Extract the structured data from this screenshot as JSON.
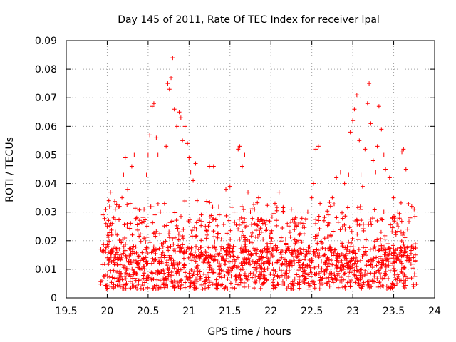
{
  "chart_data": {
    "type": "scatter",
    "title": "Day 145 of 2011, Rate Of TEC Index for receiver lpal",
    "xlabel": "GPS time / hours",
    "ylabel": "ROTI / TECUs",
    "xlim": [
      19.5,
      24
    ],
    "ylim": [
      0,
      0.09
    ],
    "grid": true,
    "legend": "none",
    "marker": "+",
    "x_ticks": [
      "19.5",
      "20",
      "20.5",
      "21",
      "21.5",
      "22",
      "22.5",
      "23",
      "23.5",
      "24"
    ],
    "y_ticks": [
      "0",
      "0.01",
      "0.02",
      "0.03",
      "0.04",
      "0.05",
      "0.06",
      "0.07",
      "0.08",
      "0.09"
    ],
    "series": [
      {
        "color": "#ff0000",
        "x_range": [
          19.92,
          23.78
        ],
        "points": [
          [
            19.95,
            0.029
          ],
          [
            19.98,
            0.017
          ],
          [
            20.0,
            0.025
          ],
          [
            20.02,
            0.034
          ],
          [
            20.04,
            0.037
          ],
          [
            20.06,
            0.026
          ],
          [
            20.08,
            0.028
          ],
          [
            20.1,
            0.031
          ],
          [
            20.12,
            0.022
          ],
          [
            20.15,
            0.032
          ],
          [
            20.18,
            0.035
          ],
          [
            20.2,
            0.043
          ],
          [
            20.22,
            0.049
          ],
          [
            20.25,
            0.038
          ],
          [
            20.28,
            0.033
          ],
          [
            20.3,
            0.046
          ],
          [
            20.33,
            0.05
          ],
          [
            20.36,
            0.028
          ],
          [
            20.4,
            0.026
          ],
          [
            20.45,
            0.031
          ],
          [
            20.48,
            0.043
          ],
          [
            20.5,
            0.05
          ],
          [
            20.52,
            0.057
          ],
          [
            20.55,
            0.067
          ],
          [
            20.57,
            0.068
          ],
          [
            20.6,
            0.056
          ],
          [
            20.62,
            0.05
          ],
          [
            20.65,
            0.03
          ],
          [
            20.7,
            0.033
          ],
          [
            20.72,
            0.053
          ],
          [
            20.74,
            0.075
          ],
          [
            20.76,
            0.073
          ],
          [
            20.78,
            0.077
          ],
          [
            20.8,
            0.084
          ],
          [
            20.82,
            0.066
          ],
          [
            20.85,
            0.06
          ],
          [
            20.88,
            0.065
          ],
          [
            20.9,
            0.063
          ],
          [
            20.92,
            0.055
          ],
          [
            20.95,
            0.06
          ],
          [
            20.98,
            0.054
          ],
          [
            21.0,
            0.049
          ],
          [
            21.02,
            0.044
          ],
          [
            21.05,
            0.041
          ],
          [
            21.08,
            0.047
          ],
          [
            21.1,
            0.034
          ],
          [
            21.15,
            0.029
          ],
          [
            21.2,
            0.025
          ],
          [
            21.25,
            0.046
          ],
          [
            21.3,
            0.046
          ],
          [
            21.35,
            0.021
          ],
          [
            21.4,
            0.018
          ],
          [
            21.45,
            0.038
          ],
          [
            21.5,
            0.039
          ],
          [
            21.55,
            0.03
          ],
          [
            21.6,
            0.052
          ],
          [
            21.62,
            0.053
          ],
          [
            21.65,
            0.046
          ],
          [
            21.68,
            0.05
          ],
          [
            21.72,
            0.037
          ],
          [
            21.75,
            0.03
          ],
          [
            21.8,
            0.031
          ],
          [
            21.85,
            0.035
          ],
          [
            21.9,
            0.027
          ],
          [
            21.95,
            0.024
          ],
          [
            22.0,
            0.021
          ],
          [
            22.05,
            0.033
          ],
          [
            22.1,
            0.037
          ],
          [
            22.15,
            0.03
          ],
          [
            22.2,
            0.026
          ],
          [
            22.25,
            0.031
          ],
          [
            22.3,
            0.028
          ],
          [
            22.35,
            0.022
          ],
          [
            22.4,
            0.026
          ],
          [
            22.45,
            0.03
          ],
          [
            22.5,
            0.035
          ],
          [
            22.52,
            0.04
          ],
          [
            22.55,
            0.052
          ],
          [
            22.58,
            0.053
          ],
          [
            22.6,
            0.033
          ],
          [
            22.65,
            0.027
          ],
          [
            22.7,
            0.029
          ],
          [
            22.75,
            0.035
          ],
          [
            22.8,
            0.042
          ],
          [
            22.85,
            0.044
          ],
          [
            22.9,
            0.04
          ],
          [
            22.95,
            0.043
          ],
          [
            22.97,
            0.058
          ],
          [
            23.0,
            0.062
          ],
          [
            23.02,
            0.066
          ],
          [
            23.05,
            0.071
          ],
          [
            23.08,
            0.055
          ],
          [
            23.1,
            0.043
          ],
          [
            23.12,
            0.039
          ],
          [
            23.15,
            0.052
          ],
          [
            23.18,
            0.068
          ],
          [
            23.2,
            0.075
          ],
          [
            23.22,
            0.061
          ],
          [
            23.25,
            0.048
          ],
          [
            23.28,
            0.044
          ],
          [
            23.3,
            0.053
          ],
          [
            23.32,
            0.067
          ],
          [
            23.35,
            0.059
          ],
          [
            23.38,
            0.05
          ],
          [
            23.4,
            0.045
          ],
          [
            23.45,
            0.042
          ],
          [
            23.5,
            0.035
          ],
          [
            23.55,
            0.03
          ],
          [
            23.6,
            0.051
          ],
          [
            23.62,
            0.052
          ],
          [
            23.65,
            0.045
          ],
          [
            23.7,
            0.028
          ],
          [
            23.72,
            0.032
          ],
          [
            23.75,
            0.031
          ]
        ]
      }
    ]
  }
}
